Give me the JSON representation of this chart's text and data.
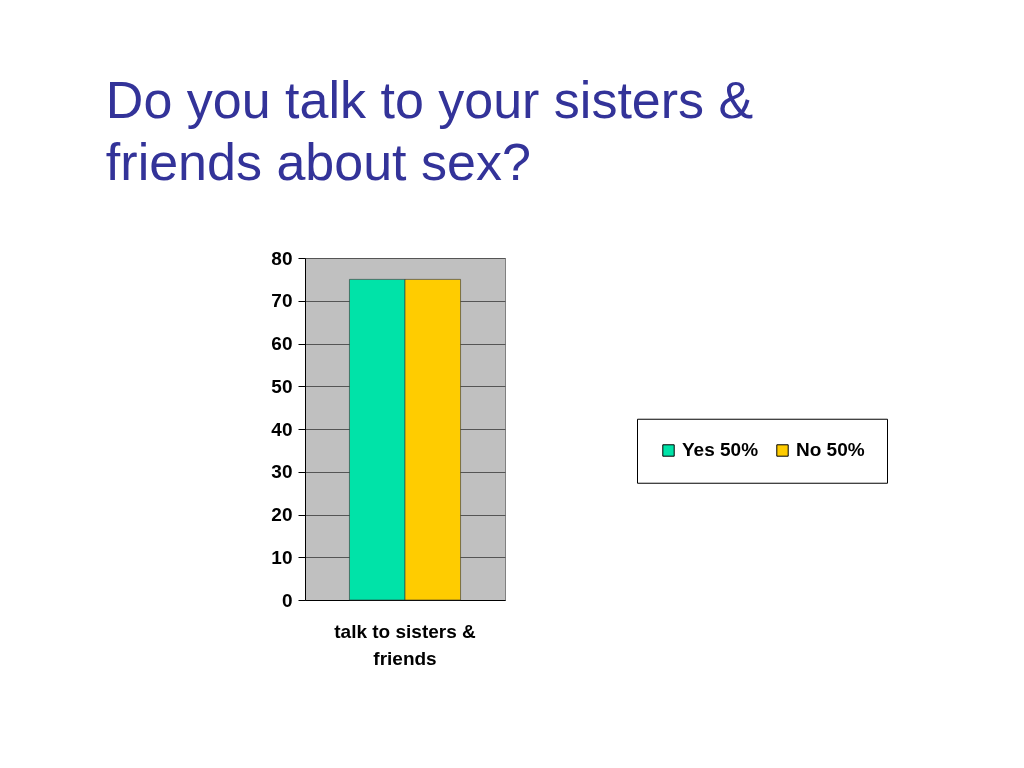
{
  "chart_data": {
    "type": "bar",
    "title": "Do you talk to your sisters & friends about sex?",
    "categories": [
      "talk to sisters & friends"
    ],
    "series": [
      {
        "name": "Yes 50%",
        "color": "#00e3a8",
        "values": [
          75
        ]
      },
      {
        "name": "No 50%",
        "color": "#ffcc00",
        "values": [
          75
        ]
      }
    ],
    "ylim": [
      0,
      80
    ],
    "yticks": [
      0,
      10,
      20,
      30,
      40,
      50,
      60,
      70,
      80
    ],
    "grid": "y",
    "legend": "right"
  }
}
